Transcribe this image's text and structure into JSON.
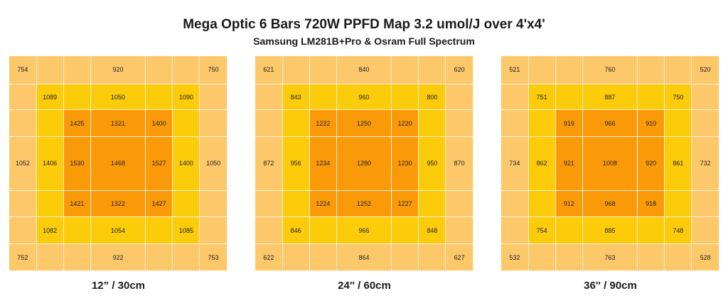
{
  "header": {
    "title": "Mega Optic 6 Bars 720W PPFD Map 3.2 umol/J over 4'x4'",
    "subtitle": "Samsung LM281B+Pro & Osram Full Spectrum"
  },
  "colors": {
    "outer_ring": "#fdc86a",
    "middle_ring": "#fccb0a",
    "inner_core": "#fb9a08"
  },
  "chart_data": [
    {
      "type": "heatmap",
      "caption": "12” / 30cm",
      "grid": [
        [
          "754",
          "",
          "",
          "920",
          "",
          "",
          "750"
        ],
        [
          "",
          "1089",
          "",
          "1050",
          "",
          "1090",
          ""
        ],
        [
          "",
          "",
          "1425",
          "1321",
          "1400",
          "",
          ""
        ],
        [
          "1052",
          "1406",
          "1530",
          "1468",
          "1527",
          "1400",
          "1050"
        ],
        [
          "",
          "",
          "1421",
          "1322",
          "1427",
          "",
          ""
        ],
        [
          "",
          "1082",
          "",
          "1054",
          "",
          "1085",
          ""
        ],
        [
          "752",
          "",
          "",
          "922",
          "",
          "",
          "753"
        ]
      ]
    },
    {
      "type": "heatmap",
      "caption": "24'' / 60cm",
      "grid": [
        [
          "621",
          "",
          "",
          "840",
          "",
          "",
          "620"
        ],
        [
          "",
          "843",
          "",
          "960",
          "",
          "800",
          ""
        ],
        [
          "",
          "",
          "1222",
          "1250",
          "1220",
          "",
          ""
        ],
        [
          "872",
          "956",
          "1234",
          "1280",
          "1230",
          "950",
          "870"
        ],
        [
          "",
          "",
          "1224",
          "1252",
          "1227",
          "",
          ""
        ],
        [
          "",
          "846",
          "",
          "966",
          "",
          "848",
          ""
        ],
        [
          "622",
          "",
          "",
          "864",
          "",
          "",
          "627"
        ]
      ]
    },
    {
      "type": "heatmap",
      "caption": "36'' / 90cm",
      "grid": [
        [
          "521",
          "",
          "",
          "760",
          "",
          "",
          "520"
        ],
        [
          "",
          "751",
          "",
          "887",
          "",
          "750",
          ""
        ],
        [
          "",
          "",
          "919",
          "966",
          "910",
          "",
          ""
        ],
        [
          "734",
          "862",
          "921",
          "1008",
          "920",
          "861",
          "732"
        ],
        [
          "",
          "",
          "912",
          "968",
          "918",
          "",
          ""
        ],
        [
          "",
          "754",
          "",
          "885",
          "",
          "748",
          ""
        ],
        [
          "532",
          "",
          "",
          "763",
          "",
          "",
          "528"
        ]
      ]
    }
  ]
}
